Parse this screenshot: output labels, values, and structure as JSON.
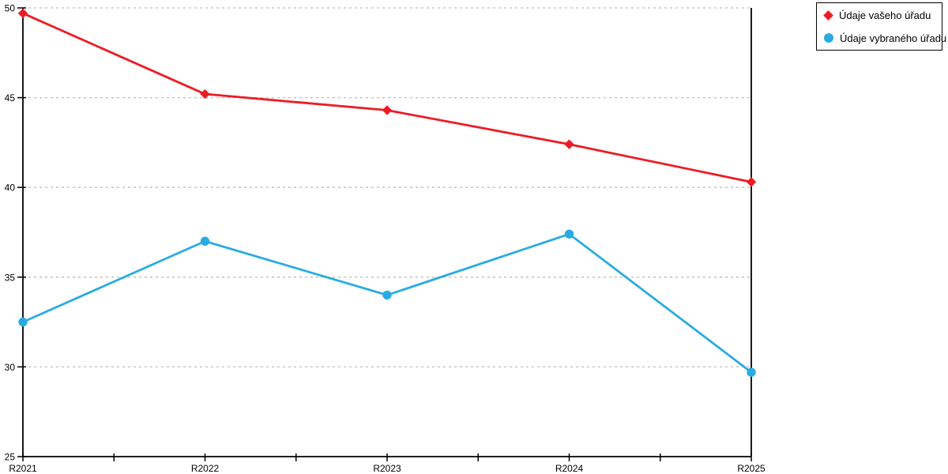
{
  "chart_data": {
    "type": "line",
    "title": "",
    "xlabel": "",
    "ylabel": "",
    "categories": [
      "R2021",
      "R2022",
      "R2023",
      "R2024",
      "R2025"
    ],
    "series": [
      {
        "name": "Údaje vašeho úřadu",
        "color": "#ed1c24",
        "marker": "diamond",
        "values": [
          49.7,
          45.2,
          44.3,
          42.4,
          40.3
        ]
      },
      {
        "name": "Údaje vybraného úřadu",
        "color": "#29abe2",
        "marker": "circle",
        "values": [
          32.5,
          37.0,
          34.0,
          37.4,
          29.7
        ]
      }
    ],
    "ylim": [
      25,
      50
    ],
    "yticks": [
      25,
      30,
      35,
      40,
      45,
      50
    ],
    "grid": "horizontal-dashed",
    "gridline_color": "#bdbdbd",
    "axis_color": "#000000",
    "legend_position": "top-right-outside",
    "x_minor_ticks_per_interval": 1
  }
}
